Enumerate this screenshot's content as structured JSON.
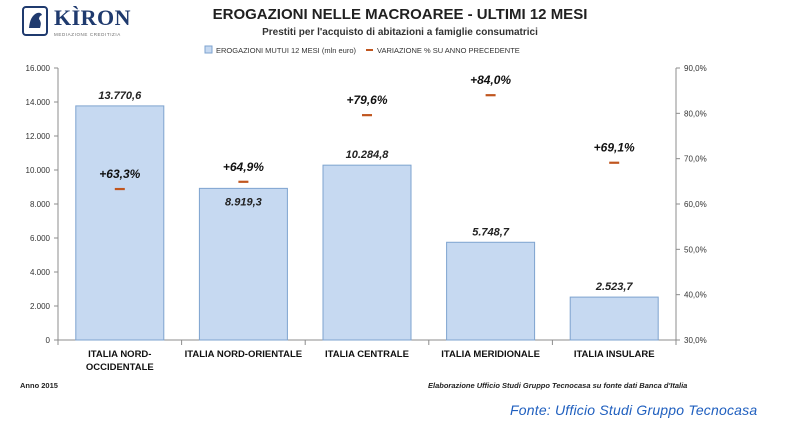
{
  "brand": {
    "name": "KÌRON",
    "tagline": "MEDIAZIONE CREDITIZIA"
  },
  "footer": {
    "left": "Anno 2015",
    "right": "Elaborazione Ufficio Studi Gruppo Tecnocasa su fonte dati Banca d'Italia"
  },
  "source_label": "Fonte: Ufficio Studi Gruppo Tecnocasa",
  "colors": {
    "bar_fill": "#c6d9f1",
    "bar_stroke": "#7ea3cf",
    "marker": "#c0561f",
    "source_text": "#1f5fbf"
  },
  "chart_data": {
    "type": "bar",
    "title": "EROGAZIONI NELLE MACROAREE - ULTIMI 12 MESI",
    "subtitle": "Prestiti per l'acquisto di abitazioni a famiglie consumatrici",
    "categories": [
      "ITALIA NORD-\nOCCIDENTALE",
      "ITALIA NORD-ORIENTALE",
      "ITALIA CENTRALE",
      "ITALIA MERIDIONALE",
      "ITALIA INSULARE"
    ],
    "series": [
      {
        "name": "EROGAZIONI MUTUI 12 MESI (mln euro)",
        "type": "bar",
        "axis": "left",
        "values": [
          13770.6,
          8919.3,
          10284.8,
          5748.7,
          2523.7
        ],
        "labels": [
          "13.770,6",
          "8.919,3",
          "10.284,8",
          "5.748,7",
          "2.523,7"
        ]
      },
      {
        "name": "VARIAZIONE % SU ANNO PRECEDENTE",
        "type": "marker",
        "axis": "right",
        "values": [
          63.3,
          64.9,
          79.6,
          84.0,
          69.1
        ],
        "labels": [
          "+63,3%",
          "+64,9%",
          "+79,6%",
          "+84,0%",
          "+69,1%"
        ]
      }
    ],
    "y_left": {
      "range": [
        0,
        16000
      ],
      "ticks": [
        0,
        2000,
        4000,
        6000,
        8000,
        10000,
        12000,
        14000,
        16000
      ],
      "tick_labels": [
        "0",
        "2.000",
        "4.000",
        "6.000",
        "8.000",
        "10.000",
        "12.000",
        "14.000",
        "16.000"
      ]
    },
    "y_right": {
      "range": [
        30,
        90
      ],
      "ticks": [
        30,
        40,
        50,
        60,
        70,
        80,
        90
      ],
      "tick_labels": [
        "30,0%",
        "40,0%",
        "50,0%",
        "60,0%",
        "70,0%",
        "80,0%",
        "90,0%"
      ]
    },
    "legend_position": "top",
    "grid": false
  }
}
